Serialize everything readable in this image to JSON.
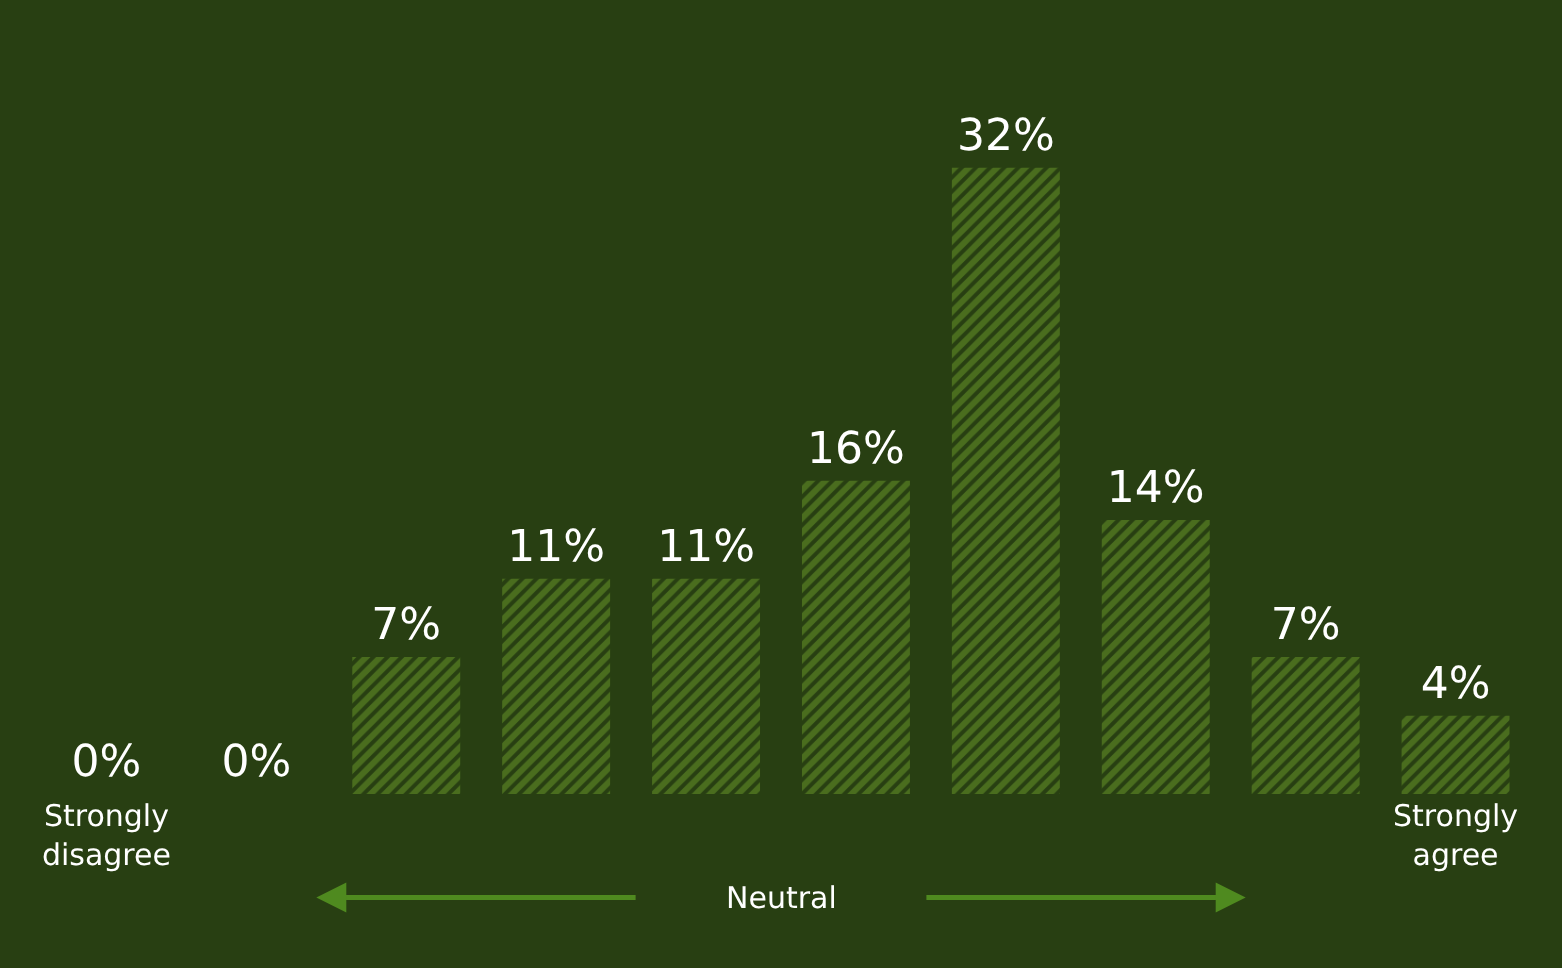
{
  "chart_data": {
    "type": "bar",
    "categories": [
      "Strongly\ndisagree",
      null,
      null,
      null,
      null,
      null,
      null,
      null,
      null,
      "Strongly\nagree"
    ],
    "values": [
      0,
      0,
      7,
      11,
      11,
      16,
      32,
      14,
      7,
      4
    ],
    "value_labels": [
      "0%",
      "0%",
      "7%",
      "11%",
      "11%",
      "16%",
      "32%",
      "14%",
      "7%",
      "4%"
    ],
    "color": "#6b9c2a",
    "annotations": [
      "Neutral"
    ]
  }
}
